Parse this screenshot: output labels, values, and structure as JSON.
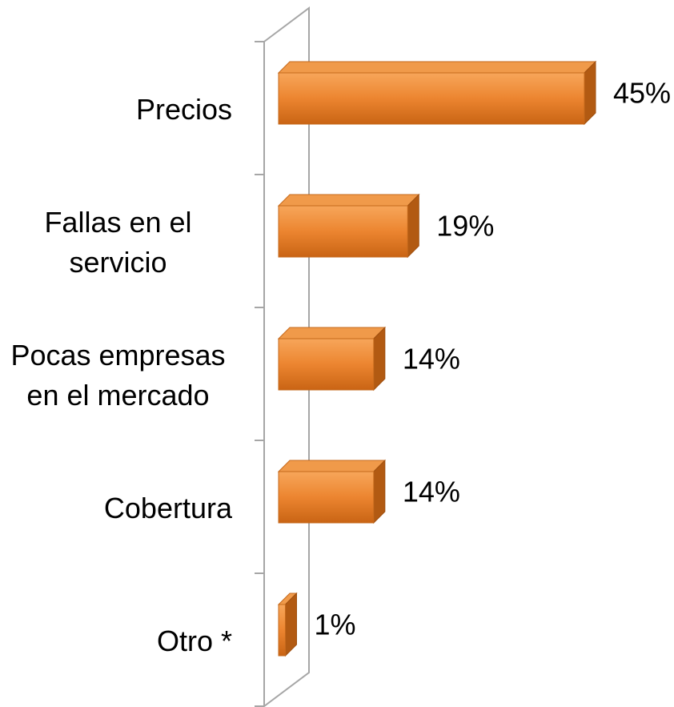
{
  "chart_data": {
    "type": "bar",
    "orientation": "horizontal",
    "categories": [
      "Precios",
      "Fallas en el servicio",
      "Pocas empresas en el mercado",
      "Cobertura",
      "Otro *"
    ],
    "values": [
      45,
      19,
      14,
      14,
      1
    ],
    "value_labels": [
      "45%",
      "19%",
      "14%",
      "14%",
      "1%"
    ],
    "color": "#e8822e"
  }
}
